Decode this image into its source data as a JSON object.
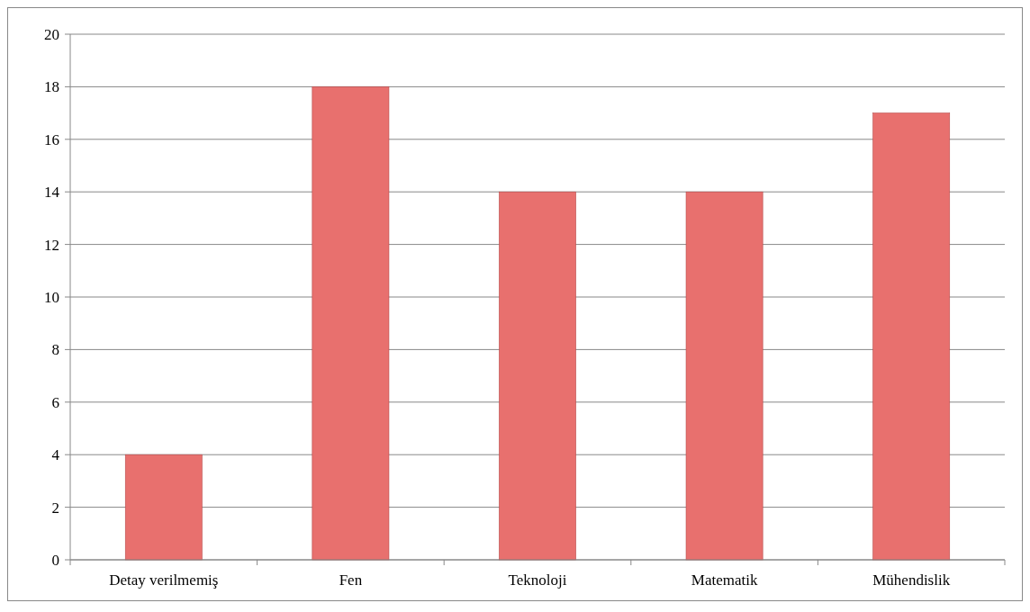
{
  "chart_data": {
    "type": "bar",
    "categories": [
      "Detay verilmemiş",
      "Fen",
      "Teknoloji",
      "Matematik",
      "Mühendislik"
    ],
    "values": [
      4,
      18,
      14,
      14,
      17
    ],
    "color": "#e8706e",
    "ylim": [
      0,
      20
    ],
    "yticks": [
      0,
      2,
      4,
      6,
      8,
      10,
      12,
      14,
      16,
      18,
      20
    ],
    "grid": "y"
  }
}
